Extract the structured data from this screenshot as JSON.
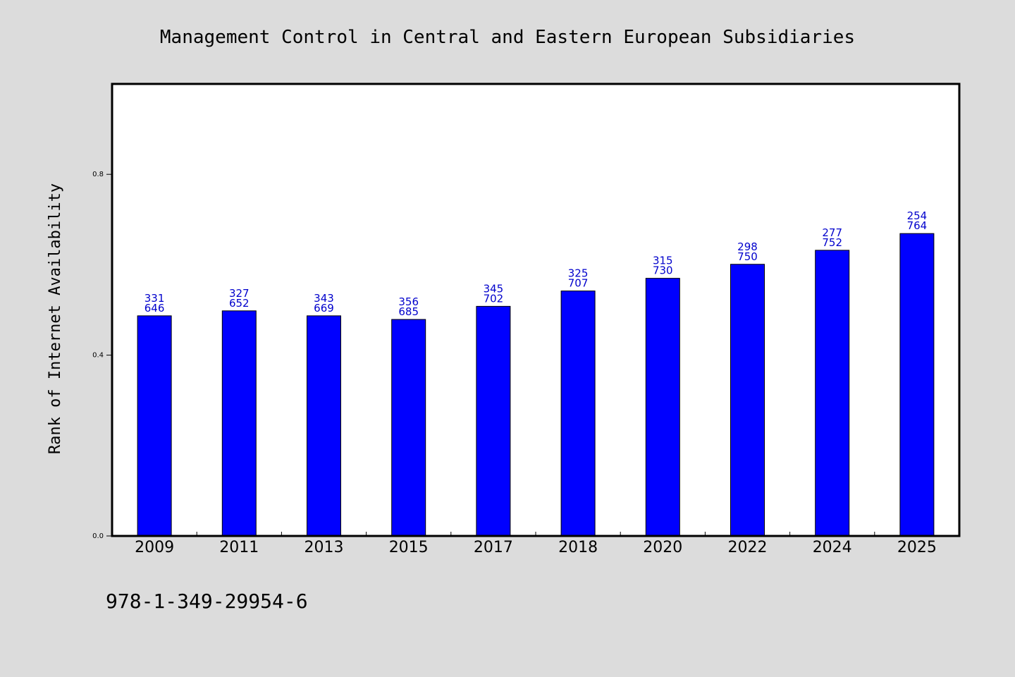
{
  "chart_data": {
    "type": "bar",
    "title": "Management Control in Central and Eastern European Subsidiaries",
    "xlabel": "",
    "ylabel": "Rank of Internet Availability",
    "ylim": [
      0.0,
      1.0
    ],
    "yticks": [
      "0.0",
      "0.4",
      "0.8"
    ],
    "ytick_values": [
      0.0,
      0.4,
      0.8
    ],
    "categories": [
      "2009",
      "2011",
      "2013",
      "2015",
      "2017",
      "2018",
      "2020",
      "2022",
      "2024",
      "2025"
    ],
    "values": [
      0.487,
      0.498,
      0.487,
      0.479,
      0.508,
      0.542,
      0.57,
      0.601,
      0.632,
      0.669
    ],
    "data_labels_top": [
      "331",
      "327",
      "343",
      "356",
      "345",
      "325",
      "315",
      "298",
      "277",
      "254"
    ],
    "data_labels_bottom": [
      "646",
      "652",
      "669",
      "685",
      "702",
      "707",
      "730",
      "750",
      "752",
      "764"
    ],
    "grid": false,
    "legend": "none",
    "colors": {
      "bar": "#0000ff",
      "bar_edge": "#000000",
      "label": "#0000cc",
      "background": "#dcdcdc",
      "plot_background": "#ffffff"
    }
  },
  "footer": {
    "isbn": "978-1-349-29954-6"
  }
}
